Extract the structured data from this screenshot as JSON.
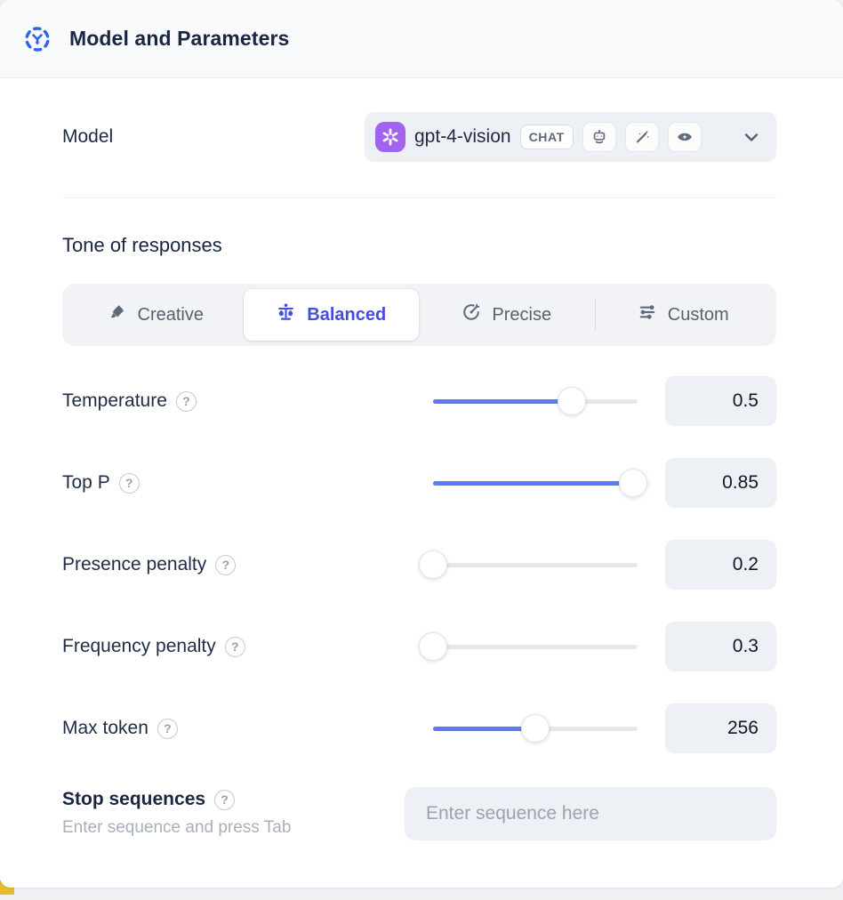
{
  "colors": {
    "header_accent": "#2e62f0",
    "selected_accent": "#474de0",
    "slider_accent": "#5b7bfa",
    "card_bg": "#ffffff",
    "header_bg": "#f8fafc",
    "field_bg": "#edf0f4",
    "openai_logo_bg": "#a264f0",
    "corner_accent": "#e3bd2c"
  },
  "header": {
    "title": "Model and Parameters"
  },
  "model": {
    "label": "Model",
    "value": "gpt-4-vision",
    "type_badge": "CHAT",
    "capability_icons": [
      "robot-icon",
      "magic-wand-icon",
      "vision-eye-icon"
    ]
  },
  "tone": {
    "heading": "Tone of responses",
    "options": [
      {
        "label": "Creative",
        "icon": "brush-icon",
        "selected": false
      },
      {
        "label": "Balanced",
        "icon": "balance-scale-icon",
        "selected": true
      },
      {
        "label": "Precise",
        "icon": "target-icon",
        "selected": false
      },
      {
        "label": "Custom",
        "icon": "sliders-icon",
        "selected": false
      }
    ]
  },
  "params": [
    {
      "label": "Temperature",
      "value": "0.5",
      "slider_pct": 68
    },
    {
      "label": "Top P",
      "value": "0.85",
      "slider_pct": 98
    },
    {
      "label": "Presence penalty",
      "value": "0.2",
      "slider_pct": 0
    },
    {
      "label": "Frequency penalty",
      "value": "0.3",
      "slider_pct": 0
    },
    {
      "label": "Max token",
      "value": "256",
      "slider_pct": 50
    }
  ],
  "stop": {
    "label": "Stop sequences",
    "hint": "Enter sequence and press Tab",
    "placeholder": "Enter sequence here"
  }
}
